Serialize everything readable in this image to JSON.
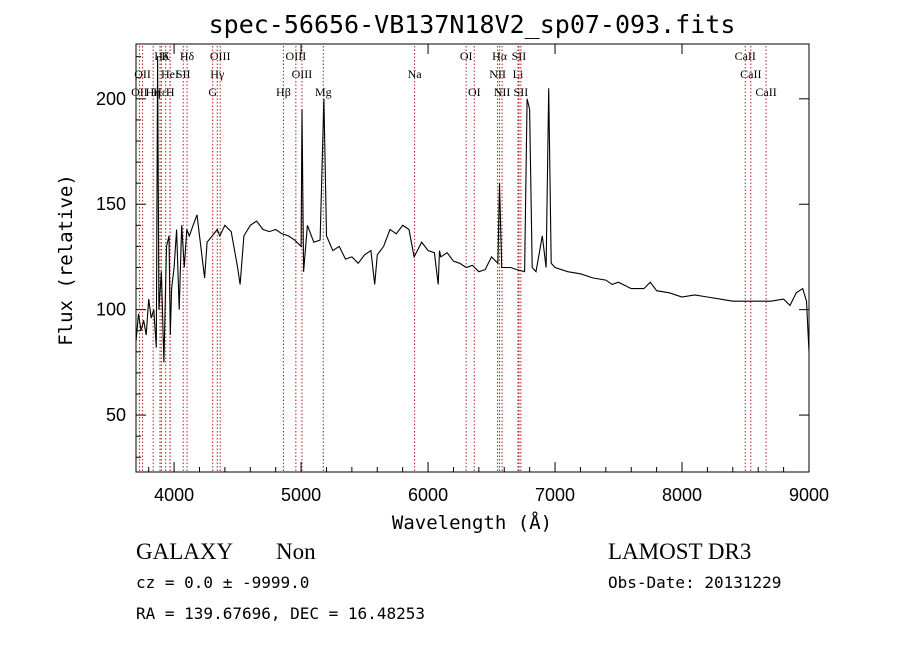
{
  "chart_data": {
    "type": "line",
    "title": "spec-56656-VB137N18V2_sp07-093.fits",
    "xlabel": "Wavelength (Å)",
    "ylabel": "Flux (relative)",
    "xlim": [
      3700,
      9000
    ],
    "ylim": [
      23,
      226
    ],
    "xticks": [
      4000,
      5000,
      6000,
      7000,
      8000,
      9000
    ],
    "yticks": [
      50,
      100,
      150,
      200
    ],
    "grid": false,
    "series": [
      {
        "x": [
          3700,
          3720,
          3740,
          3760,
          3780,
          3800,
          3820,
          3840,
          3860,
          3870,
          3880,
          3900,
          3920,
          3940,
          3960,
          3970,
          3980,
          4000,
          4020,
          4040,
          4060,
          4080,
          4100,
          4120,
          4150,
          4180,
          4210,
          4240,
          4260,
          4300,
          4340,
          4360,
          4400,
          4450,
          4500,
          4520,
          4550,
          4600,
          4650,
          4700,
          4750,
          4800,
          4850,
          4900,
          4950,
          5000,
          5007,
          5020,
          5050,
          5100,
          5150,
          5180,
          5200,
          5250,
          5300,
          5350,
          5400,
          5450,
          5500,
          5550,
          5580,
          5600,
          5650,
          5700,
          5750,
          5800,
          5850,
          5890,
          5950,
          6000,
          6050,
          6080,
          6090,
          6100,
          6150,
          6200,
          6250,
          6300,
          6350,
          6400,
          6450,
          6500,
          6550,
          6563,
          6580,
          6650,
          6700,
          6760,
          6780,
          6800,
          6820,
          6850,
          6900,
          6930,
          6950,
          6970,
          7000,
          7100,
          7200,
          7300,
          7400,
          7450,
          7500,
          7600,
          7700,
          7750,
          7800,
          7900,
          8000,
          8100,
          8200,
          8300,
          8400,
          8500,
          8600,
          8700,
          8800,
          8850,
          8900,
          8950,
          8980,
          9000
        ],
        "y": [
          85,
          98,
          90,
          95,
          88,
          105,
          96,
          100,
          82,
          220,
          100,
          118,
          75,
          130,
          135,
          88,
          110,
          120,
          138,
          100,
          140,
          120,
          138,
          135,
          140,
          145,
          130,
          115,
          132,
          135,
          138,
          135,
          140,
          137,
          120,
          112,
          135,
          140,
          142,
          138,
          137,
          138,
          136,
          135,
          133,
          130,
          195,
          118,
          140,
          132,
          133,
          200,
          135,
          128,
          130,
          124,
          125,
          122,
          126,
          128,
          112,
          126,
          130,
          138,
          136,
          140,
          138,
          125,
          132,
          128,
          127,
          112,
          128,
          125,
          127,
          123,
          122,
          120,
          121,
          118,
          119,
          125,
          122,
          160,
          120,
          120,
          119,
          118,
          200,
          195,
          120,
          118,
          135,
          120,
          205,
          122,
          120,
          118,
          117,
          115,
          114,
          112,
          113,
          110,
          110,
          113,
          109,
          108,
          106,
          107,
          106,
          105,
          104,
          104,
          104,
          104,
          105,
          102,
          108,
          110,
          104,
          80
        ]
      }
    ],
    "line_markers": [
      {
        "label": "OII",
        "x": 3727,
        "row": 3
      },
      {
        "label": "OII",
        "x": 3752,
        "row": 2
      },
      {
        "label": "Hε",
        "x": 3889,
        "row": 3
      },
      {
        "label": "Hη",
        "x": 3835,
        "row": 3
      },
      {
        "label": "Hδ",
        "x": 3900,
        "row": 1
      },
      {
        "label": "HeI",
        "x": 3968,
        "row": 2
      },
      {
        "label": "K",
        "x": 3934,
        "row": 1
      },
      {
        "label": "H",
        "x": 3969,
        "row": 3
      },
      {
        "label": "Hδ",
        "x": 4102,
        "row": 1
      },
      {
        "label": "SII",
        "x": 4072,
        "row": 2
      },
      {
        "label": "OIII",
        "x": 4363,
        "row": 1
      },
      {
        "label": "Hγ",
        "x": 4340,
        "row": 2
      },
      {
        "label": "G",
        "x": 4304,
        "row": 3
      },
      {
        "label": "Hβ",
        "x": 4861,
        "row": 3
      },
      {
        "label": "OIII",
        "x": 4959,
        "row": 1
      },
      {
        "label": "OIII",
        "x": 5007,
        "row": 2
      },
      {
        "label": "Mg",
        "x": 5175,
        "row": 3
      },
      {
        "label": "Na",
        "x": 5894,
        "row": 2
      },
      {
        "label": "OI",
        "x": 6300,
        "row": 1
      },
      {
        "label": "OI",
        "x": 6364,
        "row": 3
      },
      {
        "label": "Hα",
        "x": 6563,
        "row": 1
      },
      {
        "label": "NII",
        "x": 6548,
        "row": 2
      },
      {
        "label": "NII",
        "x": 6583,
        "row": 3
      },
      {
        "label": "SII",
        "x": 6716,
        "row": 1
      },
      {
        "label": "Li",
        "x": 6708,
        "row": 2
      },
      {
        "label": "SII",
        "x": 6731,
        "row": 3
      },
      {
        "label": "CaII",
        "x": 8498,
        "row": 1
      },
      {
        "label": "CaII",
        "x": 8542,
        "row": 2
      },
      {
        "label": "CaII",
        "x": 8662,
        "row": 3
      }
    ]
  },
  "info": {
    "object_class": "GALAXY",
    "subclass": "Non",
    "survey": "LAMOST DR3",
    "cz": "cz = 0.0 ± -9999.0",
    "obs_date": "Obs-Date: 20131229",
    "coords": "RA = 139.67696, DEC =  16.48253"
  }
}
